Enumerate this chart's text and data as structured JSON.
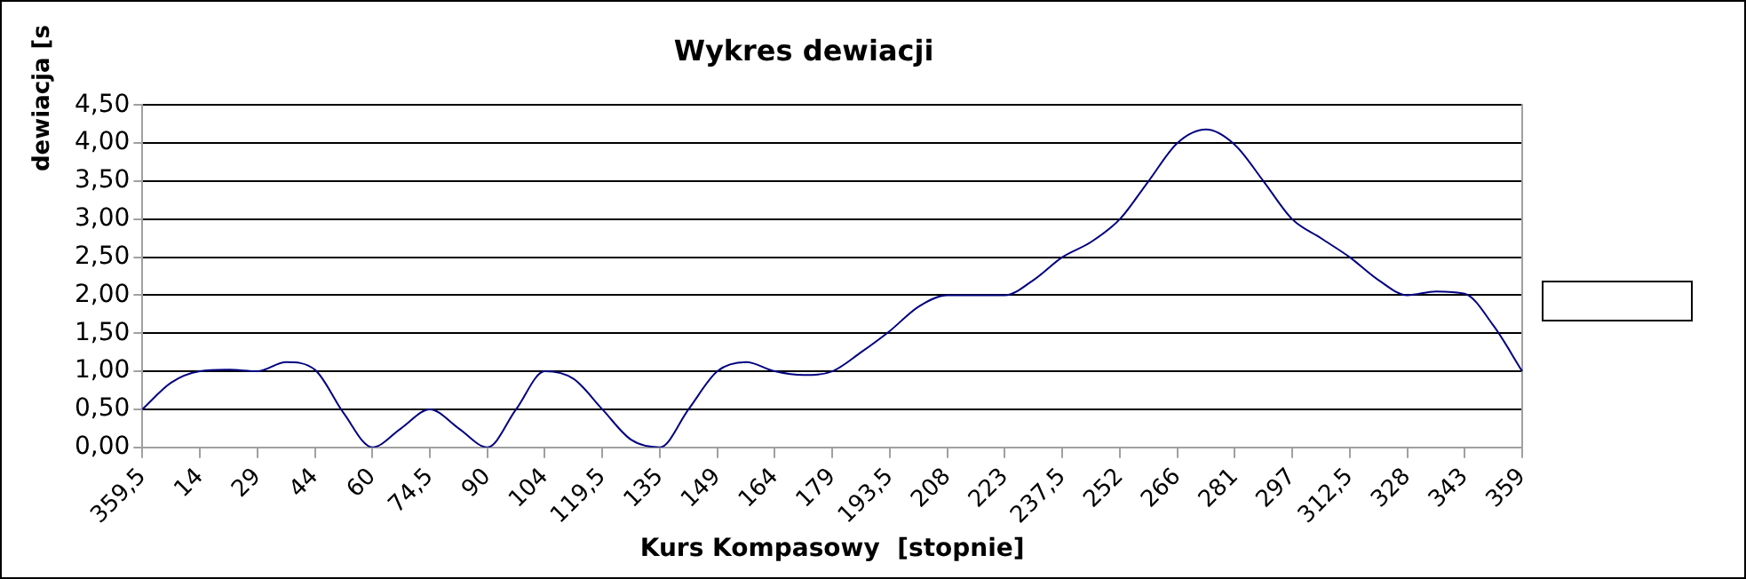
{
  "chart_data": {
    "type": "line",
    "title": "Wykres dewiacji",
    "xlabel": "Kurs Kompasowy  [stopnie]",
    "ylabel": "dewiacja [s",
    "categories": [
      "359,5",
      null,
      "14",
      null,
      "29",
      null,
      "44",
      null,
      "60",
      null,
      "74,5",
      null,
      "90",
      null,
      "104",
      null,
      "119,5",
      null,
      "135",
      null,
      "149",
      null,
      "164",
      null,
      "179",
      null,
      "193,5",
      null,
      "208",
      null,
      "223",
      null,
      "237,5",
      null,
      "252",
      null,
      "266",
      null,
      "281",
      null,
      "297",
      null,
      "312,5",
      null,
      "328",
      null,
      "343",
      null,
      "359"
    ],
    "series": [
      {
        "color": "#000080",
        "values": [
          0.5,
          0.85,
          1.0,
          1.02,
          1.0,
          1.12,
          1.02,
          0.45,
          0.0,
          0.25,
          0.5,
          0.25,
          0.0,
          0.5,
          1.0,
          0.9,
          0.5,
          0.1,
          0.0,
          0.5,
          1.0,
          1.12,
          1.0,
          0.95,
          1.0,
          1.25,
          1.53,
          1.85,
          2.0,
          2.0,
          2.0,
          2.2,
          2.5,
          2.7,
          3.0,
          3.5,
          4.0,
          4.18,
          3.98,
          3.5,
          3.0,
          2.75,
          2.5,
          2.2,
          2.0,
          2.05,
          2.02,
          1.6,
          1.0
        ]
      }
    ],
    "ylim": [
      0,
      4.5
    ],
    "yticks": [
      {
        "value": 0,
        "label": "0,00"
      },
      {
        "value": 0.5,
        "label": "0,50"
      },
      {
        "value": 1,
        "label": "1,00"
      },
      {
        "value": 1.5,
        "label": "1,50"
      },
      {
        "value": 2,
        "label": "2,00"
      },
      {
        "value": 2.5,
        "label": "2,50"
      },
      {
        "value": 3,
        "label": "3,00"
      },
      {
        "value": 3.5,
        "label": "3,50"
      },
      {
        "value": 4,
        "label": "4,00"
      },
      {
        "value": 4.5,
        "label": "4,50"
      }
    ],
    "grid": "y",
    "marker": "none",
    "line_style": "solid"
  }
}
